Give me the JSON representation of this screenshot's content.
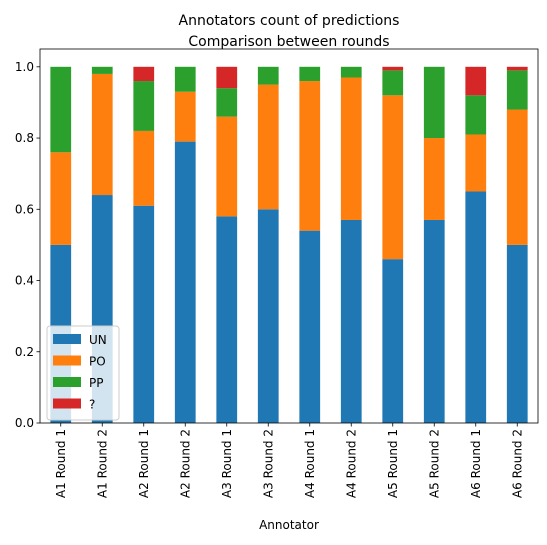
{
  "chart_data": {
    "type": "bar",
    "stacked": true,
    "title": "Annotators count of predictions",
    "subtitle": "Comparison between rounds",
    "xlabel": "Annotator",
    "ylabel": "",
    "ylim": [
      0,
      1.05
    ],
    "yticks": [
      "0.0",
      "0.2",
      "0.4",
      "0.6",
      "0.8",
      "1.0"
    ],
    "grid": false,
    "legend_position": "lower-left",
    "categories": [
      "A1 Round 1",
      "A1 Round 2",
      "A2 Round 1",
      "A2 Round 2",
      "A3 Round 1",
      "A3 Round 2",
      "A4 Round 1",
      "A4 Round 2",
      "A5 Round 1",
      "A5 Round 2",
      "A6 Round 1",
      "A6 Round 2"
    ],
    "series": [
      {
        "name": "UN",
        "color": "#1f77b4",
        "values": [
          0.5,
          0.64,
          0.61,
          0.79,
          0.58,
          0.6,
          0.54,
          0.57,
          0.46,
          0.57,
          0.65,
          0.5
        ]
      },
      {
        "name": "PO",
        "color": "#ff7f0e",
        "values": [
          0.26,
          0.34,
          0.21,
          0.14,
          0.28,
          0.35,
          0.42,
          0.4,
          0.46,
          0.23,
          0.16,
          0.38
        ]
      },
      {
        "name": "PP",
        "color": "#2ca02c",
        "values": [
          0.24,
          0.02,
          0.14,
          0.07,
          0.08,
          0.05,
          0.04,
          0.03,
          0.07,
          0.2,
          0.11,
          0.11
        ]
      },
      {
        "name": "?",
        "color": "#d62728",
        "values": [
          0.0,
          0.0,
          0.04,
          0.0,
          0.06,
          0.0,
          0.0,
          0.0,
          0.01,
          0.0,
          0.08,
          0.01
        ]
      }
    ]
  }
}
